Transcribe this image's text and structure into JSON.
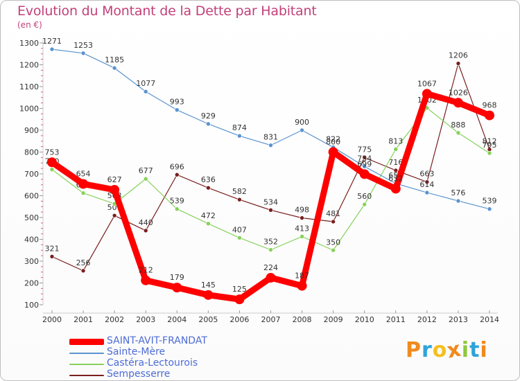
{
  "header": {
    "title": "Evolution du Montant de la Dette par Habitant",
    "unit": "(en €)"
  },
  "logo": {
    "text": "Proxiti",
    "colors": [
      "#f08a1c",
      "#2fa3d9",
      "#f4c01e",
      "#f08a1c",
      "#8fc63d",
      "#2fa3d9",
      "#f08a1c"
    ]
  },
  "chart_data": {
    "type": "line",
    "title": "Evolution du Montant de la Dette par Habitant",
    "ylabel": "(en €)",
    "xlabel": "",
    "x": [
      2000,
      2001,
      2002,
      2003,
      2004,
      2005,
      2006,
      2007,
      2008,
      2009,
      2010,
      2011,
      2012,
      2013,
      2014
    ],
    "ylim": [
      100,
      1300
    ],
    "yticks": [
      100,
      200,
      300,
      400,
      500,
      600,
      700,
      800,
      900,
      1000,
      1100,
      1200,
      1300
    ],
    "grid": false,
    "legend_position": "bottom-left",
    "series": [
      {
        "name": "Sempesserre",
        "color": "#7a1f1f",
        "values": [
          321,
          256,
          509,
          440,
          696,
          636,
          582,
          534,
          498,
          481,
          775,
          716,
          663,
          1206,
          812
        ]
      },
      {
        "name": "Castéra-Lectourois",
        "color": "#86d15a",
        "values": [
          720,
          612,
          563,
          677,
          539,
          472,
          407,
          352,
          413,
          350,
          560,
          813,
          1002,
          888,
          795
        ]
      },
      {
        "name": "Sainte-Mère",
        "color": "#5a93cf",
        "values": [
          1271,
          1253,
          1185,
          1077,
          993,
          929,
          874,
          831,
          900,
          822,
          734,
          656,
          614,
          576,
          539
        ]
      },
      {
        "name": "SAINT-AVIT-FRANDAT",
        "color": "#ff0000",
        "values": [
          753,
          654,
          627,
          212,
          179,
          145,
          125,
          224,
          187,
          800,
          699,
          632,
          1067,
          1026,
          968
        ]
      }
    ],
    "legend_order": [
      "SAINT-AVIT-FRANDAT",
      "Sainte-Mère",
      "Castéra-Lectourois",
      "Sempesserre"
    ]
  }
}
